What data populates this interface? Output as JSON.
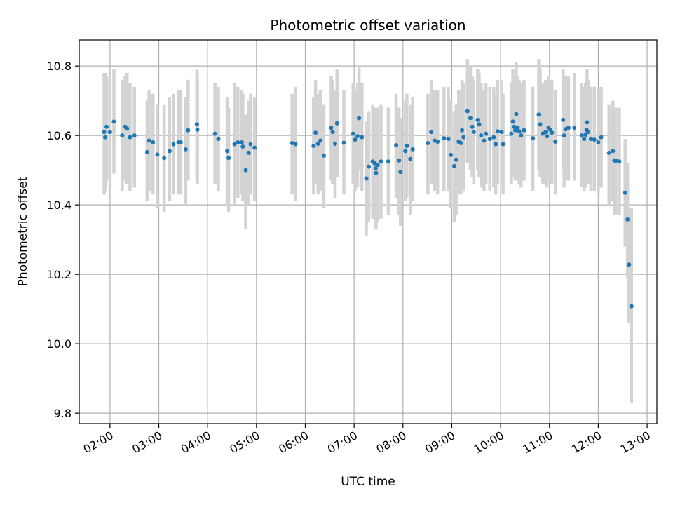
{
  "chart_data": {
    "type": "scatter",
    "title": "Photometric offset variation",
    "xlabel": "UTC time",
    "ylabel": "Photometric offset",
    "grid": true,
    "x_domain_hours": [
      1.37,
      13.2
    ],
    "ylim": [
      9.77,
      10.875
    ],
    "x_ticks": [
      {
        "value": 2,
        "label": "02:00"
      },
      {
        "value": 3,
        "label": "03:00"
      },
      {
        "value": 4,
        "label": "04:00"
      },
      {
        "value": 5,
        "label": "05:00"
      },
      {
        "value": 6,
        "label": "06:00"
      },
      {
        "value": 7,
        "label": "07:00"
      },
      {
        "value": 8,
        "label": "08:00"
      },
      {
        "value": 9,
        "label": "09:00"
      },
      {
        "value": 10,
        "label": "10:00"
      },
      {
        "value": 11,
        "label": "11:00"
      },
      {
        "value": 12,
        "label": "12:00"
      },
      {
        "value": 13,
        "label": "13:00"
      }
    ],
    "y_ticks": [
      {
        "value": 9.8,
        "label": "9.8"
      },
      {
        "value": 10.0,
        "label": "10.0"
      },
      {
        "value": 10.2,
        "label": "10.2"
      },
      {
        "value": 10.4,
        "label": "10.4"
      },
      {
        "value": 10.6,
        "label": "10.6"
      },
      {
        "value": 10.8,
        "label": "10.8"
      }
    ],
    "colors": {
      "point": "#1f77b4",
      "errorbar": "#d3d3d3",
      "grid": "#b0b0b0"
    },
    "series": [
      {
        "points": [
          [
            1.88,
            10.61,
            10.78,
            10.43
          ],
          [
            1.9,
            10.595,
            10.78,
            10.44
          ],
          [
            1.93,
            10.625,
            10.77,
            10.47
          ],
          [
            2.0,
            10.61,
            10.76,
            10.45
          ],
          [
            2.08,
            10.64,
            10.79,
            10.49
          ],
          [
            2.25,
            10.6,
            10.76,
            10.44
          ],
          [
            2.31,
            10.625,
            10.77,
            10.47
          ],
          [
            2.35,
            10.62,
            10.78,
            10.46
          ],
          [
            2.41,
            10.595,
            10.75,
            10.44
          ],
          [
            2.5,
            10.6,
            10.74,
            10.45
          ],
          [
            2.76,
            10.552,
            10.7,
            10.41
          ],
          [
            2.8,
            10.585,
            10.73,
            10.44
          ],
          [
            2.88,
            10.58,
            10.72,
            10.43
          ],
          [
            2.97,
            10.545,
            10.69,
            10.39
          ],
          [
            3.11,
            10.535,
            10.69,
            10.38
          ],
          [
            3.22,
            10.555,
            10.71,
            10.41
          ],
          [
            3.3,
            10.575,
            10.72,
            10.43
          ],
          [
            3.4,
            10.58,
            10.73,
            10.43
          ],
          [
            3.45,
            10.58,
            10.73,
            10.43
          ],
          [
            3.55,
            10.56,
            10.71,
            10.4
          ],
          [
            3.6,
            10.615,
            10.76,
            10.47
          ],
          [
            3.78,
            10.632,
            10.79,
            10.47
          ],
          [
            3.79,
            10.617,
            10.78,
            10.46
          ],
          [
            4.15,
            10.605,
            10.75,
            10.46
          ],
          [
            4.22,
            10.59,
            10.74,
            10.44
          ],
          [
            4.4,
            10.555,
            10.71,
            10.4
          ],
          [
            4.43,
            10.535,
            10.68,
            10.38
          ],
          [
            4.55,
            10.575,
            10.75,
            10.4
          ],
          [
            4.62,
            10.58,
            10.74,
            10.42
          ],
          [
            4.7,
            10.58,
            10.73,
            10.43
          ],
          [
            4.72,
            10.568,
            10.72,
            10.41
          ],
          [
            4.78,
            10.5,
            10.66,
            10.33
          ],
          [
            4.84,
            10.55,
            10.7,
            10.4
          ],
          [
            4.88,
            10.575,
            10.72,
            10.43
          ],
          [
            4.96,
            10.565,
            10.71,
            10.41
          ],
          [
            5.73,
            10.578,
            10.72,
            10.43
          ],
          [
            5.8,
            10.575,
            10.74,
            10.41
          ],
          [
            6.17,
            10.57,
            10.71,
            10.43
          ],
          [
            6.21,
            10.608,
            10.76,
            10.46
          ],
          [
            6.26,
            10.576,
            10.72,
            10.43
          ],
          [
            6.31,
            10.585,
            10.73,
            10.44
          ],
          [
            6.38,
            10.542,
            10.69,
            10.39
          ],
          [
            6.53,
            10.622,
            10.77,
            10.47
          ],
          [
            6.56,
            10.61,
            10.76,
            10.46
          ],
          [
            6.61,
            10.576,
            10.73,
            10.42
          ],
          [
            6.65,
            10.635,
            10.79,
            10.48
          ],
          [
            6.79,
            10.579,
            10.73,
            10.43
          ],
          [
            6.98,
            10.605,
            10.75,
            10.46
          ],
          [
            7.02,
            10.588,
            10.73,
            10.44
          ],
          [
            7.07,
            10.598,
            10.75,
            10.45
          ],
          [
            7.1,
            10.65,
            10.8,
            10.5
          ],
          [
            7.16,
            10.595,
            10.75,
            10.44
          ],
          [
            7.25,
            10.476,
            10.64,
            10.31
          ],
          [
            7.3,
            10.51,
            10.67,
            10.35
          ],
          [
            7.38,
            10.525,
            10.69,
            10.36
          ],
          [
            7.42,
            10.52,
            10.68,
            10.36
          ],
          [
            7.44,
            10.505,
            10.67,
            10.34
          ],
          [
            7.45,
            10.492,
            10.65,
            10.33
          ],
          [
            7.48,
            10.515,
            10.68,
            10.35
          ],
          [
            7.55,
            10.525,
            10.69,
            10.36
          ],
          [
            7.7,
            10.525,
            10.68,
            10.37
          ],
          [
            7.86,
            10.572,
            10.72,
            10.42
          ],
          [
            7.92,
            10.528,
            10.68,
            10.37
          ],
          [
            7.95,
            10.495,
            10.65,
            10.34
          ],
          [
            8.05,
            10.555,
            10.7,
            10.41
          ],
          [
            8.08,
            10.57,
            10.72,
            10.42
          ],
          [
            8.15,
            10.532,
            10.69,
            10.37
          ],
          [
            8.2,
            10.56,
            10.71,
            10.41
          ],
          [
            8.51,
            10.578,
            10.72,
            10.43
          ],
          [
            8.58,
            10.61,
            10.76,
            10.46
          ],
          [
            8.65,
            10.585,
            10.73,
            10.44
          ],
          [
            8.71,
            10.582,
            10.73,
            10.43
          ],
          [
            8.84,
            10.592,
            10.74,
            10.44
          ],
          [
            8.93,
            10.59,
            10.74,
            10.44
          ],
          [
            8.98,
            10.544,
            10.7,
            10.39
          ],
          [
            9.05,
            10.512,
            10.67,
            10.35
          ],
          [
            9.09,
            10.53,
            10.69,
            10.37
          ],
          [
            9.14,
            10.582,
            10.73,
            10.43
          ],
          [
            9.19,
            10.578,
            10.73,
            10.43
          ],
          [
            9.21,
            10.615,
            10.76,
            10.47
          ],
          [
            9.24,
            10.595,
            10.75,
            10.44
          ],
          [
            9.32,
            10.67,
            10.82,
            10.52
          ],
          [
            9.38,
            10.65,
            10.8,
            10.5
          ],
          [
            9.42,
            10.625,
            10.77,
            10.48
          ],
          [
            9.45,
            10.61,
            10.76,
            10.46
          ],
          [
            9.53,
            10.645,
            10.79,
            10.5
          ],
          [
            9.56,
            10.632,
            10.78,
            10.48
          ],
          [
            9.6,
            10.6,
            10.75,
            10.45
          ],
          [
            9.66,
            10.585,
            10.73,
            10.44
          ],
          [
            9.7,
            10.605,
            10.75,
            10.46
          ],
          [
            9.78,
            10.59,
            10.74,
            10.44
          ],
          [
            9.86,
            10.595,
            10.74,
            10.45
          ],
          [
            9.9,
            10.575,
            10.72,
            10.43
          ],
          [
            9.94,
            10.612,
            10.76,
            10.46
          ],
          [
            10.02,
            10.61,
            10.76,
            10.46
          ],
          [
            10.05,
            10.575,
            10.72,
            10.43
          ],
          [
            10.22,
            10.605,
            10.75,
            10.46
          ],
          [
            10.25,
            10.64,
            10.79,
            10.49
          ],
          [
            10.28,
            10.625,
            10.77,
            10.48
          ],
          [
            10.3,
            10.615,
            10.76,
            10.47
          ],
          [
            10.32,
            10.662,
            10.81,
            10.51
          ],
          [
            10.35,
            10.622,
            10.77,
            10.47
          ],
          [
            10.38,
            10.612,
            10.76,
            10.46
          ],
          [
            10.42,
            10.6,
            10.75,
            10.45
          ],
          [
            10.48,
            10.615,
            10.76,
            10.47
          ],
          [
            10.66,
            10.592,
            10.74,
            10.44
          ],
          [
            10.78,
            10.66,
            10.82,
            10.5
          ],
          [
            10.81,
            10.632,
            10.79,
            10.48
          ],
          [
            10.86,
            10.605,
            10.75,
            10.46
          ],
          [
            10.92,
            10.61,
            10.76,
            10.46
          ],
          [
            10.95,
            10.598,
            10.75,
            10.45
          ],
          [
            10.98,
            10.622,
            10.77,
            10.47
          ],
          [
            11.02,
            10.616,
            10.76,
            10.47
          ],
          [
            11.05,
            10.608,
            10.76,
            10.46
          ],
          [
            11.12,
            10.582,
            10.73,
            10.43
          ],
          [
            11.28,
            10.645,
            10.79,
            10.5
          ],
          [
            11.3,
            10.6,
            10.75,
            10.45
          ],
          [
            11.33,
            10.618,
            10.77,
            10.47
          ],
          [
            11.39,
            10.622,
            10.77,
            10.47
          ],
          [
            11.51,
            10.622,
            10.78,
            10.47
          ],
          [
            11.66,
            10.6,
            10.75,
            10.45
          ],
          [
            11.71,
            10.59,
            10.74,
            10.44
          ],
          [
            11.74,
            10.602,
            10.75,
            10.45
          ],
          [
            11.76,
            10.616,
            10.76,
            10.47
          ],
          [
            11.77,
            10.638,
            10.79,
            10.48
          ],
          [
            11.79,
            10.61,
            10.76,
            10.46
          ],
          [
            11.85,
            10.59,
            10.74,
            10.44
          ],
          [
            11.92,
            10.588,
            10.74,
            10.44
          ],
          [
            12.0,
            10.58,
            10.73,
            10.43
          ],
          [
            12.06,
            10.595,
            10.74,
            10.45
          ],
          [
            12.22,
            10.55,
            10.69,
            10.4
          ],
          [
            12.3,
            10.555,
            10.7,
            10.41
          ],
          [
            12.33,
            10.528,
            10.68,
            10.37
          ],
          [
            12.36,
            10.527,
            10.68,
            10.37
          ],
          [
            12.43,
            10.525,
            10.68,
            10.37
          ],
          [
            12.55,
            10.435,
            10.59,
            10.28
          ],
          [
            12.6,
            10.358,
            10.52,
            10.19
          ],
          [
            12.63,
            10.228,
            10.39,
            10.06
          ],
          [
            12.68,
            10.108,
            10.39,
            9.83
          ]
        ]
      }
    ]
  }
}
